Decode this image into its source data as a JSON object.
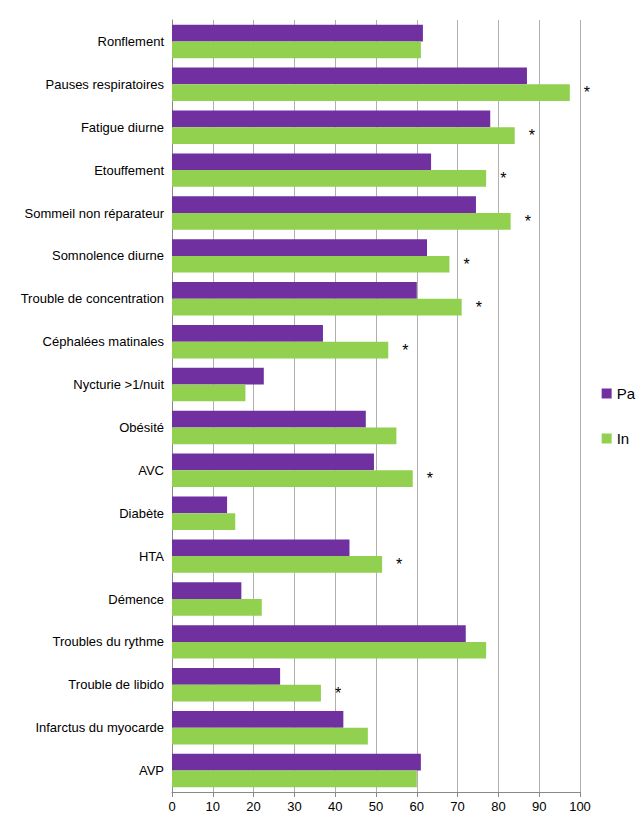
{
  "chart_data": {
    "type": "bar",
    "orientation": "horizontal",
    "categories": [
      "Ronflement",
      "Pauses respiratoires",
      "Fatigue diurne",
      "Etouffement",
      "Sommeil non réparateur",
      "Somnolence diurne",
      "Trouble de concentration",
      "Céphalées matinales",
      "Nycturie >1/nuit",
      "Obésité",
      "AVC",
      "Diabète",
      "HTA",
      "Démence",
      "Troubles du rythme",
      "Trouble de libido",
      "Infarctus du myocarde",
      "AVP"
    ],
    "series": [
      {
        "name": "Pa",
        "color": "#7030a0",
        "values": [
          61.5,
          87,
          78,
          63.5,
          74.5,
          62.5,
          60,
          37,
          22.5,
          47.5,
          49.5,
          13.5,
          43.5,
          17,
          72,
          26.5,
          42,
          61
        ]
      },
      {
        "name": "In",
        "color": "#92d050",
        "values": [
          61,
          97.5,
          84,
          77,
          83,
          68,
          71,
          53,
          18,
          55,
          59,
          15.5,
          51.5,
          22,
          77,
          36.5,
          48,
          60
        ]
      }
    ],
    "annotations": [
      null,
      "*",
      "*",
      "*",
      "*",
      "*",
      "*",
      "*",
      null,
      null,
      "*",
      null,
      "*",
      null,
      null,
      "*",
      null,
      null
    ],
    "xlim": [
      0,
      100
    ],
    "xticks": [
      0,
      10,
      20,
      30,
      40,
      50,
      60,
      70,
      80,
      90,
      100
    ],
    "grid": true,
    "legend": "right"
  }
}
